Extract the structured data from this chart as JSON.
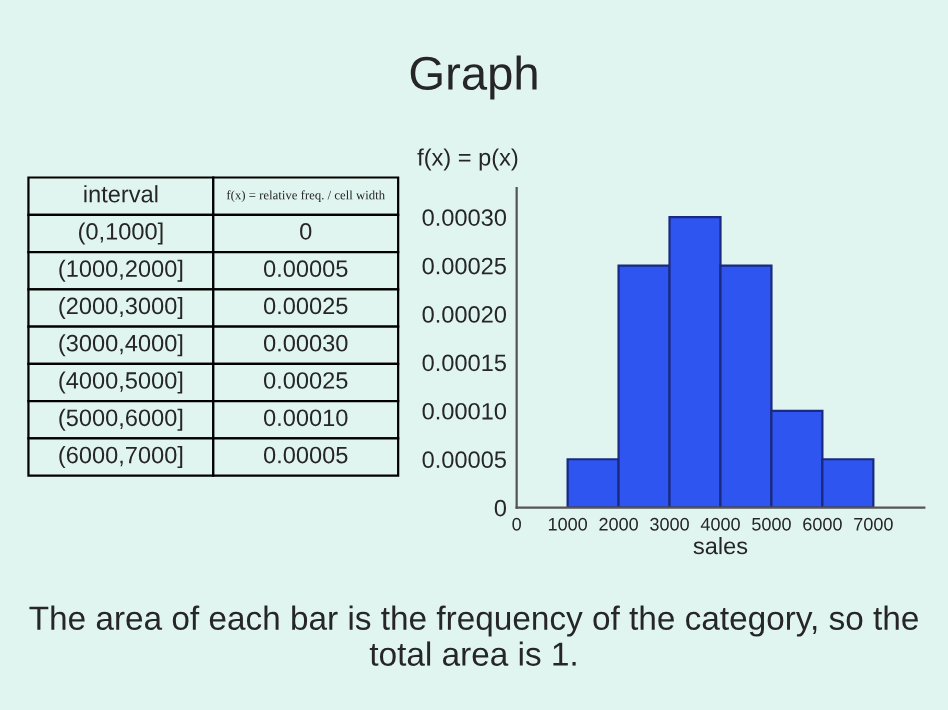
{
  "chart_data": [
    {
      "type": "other",
      "annotations": [
        "interval",
        "f(x) = relative freq. / cell width",
        "(0,1000]",
        "0",
        "(1000,2000]",
        "0.00005",
        "(2000,3000]",
        "0.00025",
        "(3000,4000]",
        "0.00030",
        "(4000,5000]",
        "0.00025",
        "(5000,6000]",
        "0.00010",
        "(6000,7000]",
        "0.00005"
      ]
    },
    {
      "type": "histogram",
      "title": "Graph",
      "ylabel": "f(x) = p(x)",
      "xlabel": "sales",
      "bins": [
        0,
        1000,
        2000,
        3000,
        4000,
        5000,
        6000,
        7000
      ],
      "values": [
        0,
        5e-05,
        0.00025,
        0.0003,
        0.00025,
        0.0001,
        5e-05
      ],
      "color": "#2f55f0",
      "xlim": [
        0,
        8000
      ],
      "xticks": [
        0,
        1000,
        2000,
        3000,
        4000,
        5000,
        6000,
        7000
      ],
      "ylim": [
        0,
        0.00033
      ],
      "yticks": [
        {
          "value": 0,
          "label": "0"
        },
        {
          "value": 5e-05,
          "label": "0.00005"
        },
        {
          "value": 0.0001,
          "label": "0.00010"
        },
        {
          "value": 0.00015,
          "label": "0.00015"
        },
        {
          "value": 0.0002,
          "label": "0.00020"
        },
        {
          "value": 0.00025,
          "label": "0.00025"
        },
        {
          "value": 0.0003,
          "label": "0.00030"
        }
      ],
      "grid": false,
      "annotations": [
        "The area of each bar is the frequency of the category, so the total area is 1."
      ]
    }
  ]
}
